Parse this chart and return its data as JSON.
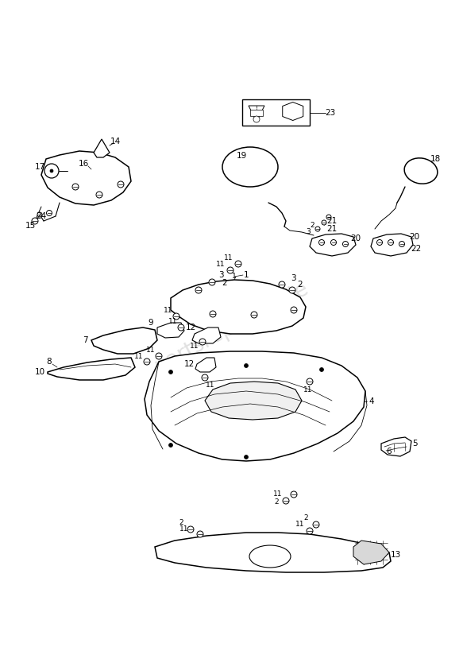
{
  "bg_color": "#ffffff",
  "line_color": "#000000",
  "fig_width": 5.83,
  "fig_height": 8.24,
  "dpi": 100,
  "lw_main": 1.1,
  "lw_thin": 0.6,
  "label_fontsize": 7.5
}
